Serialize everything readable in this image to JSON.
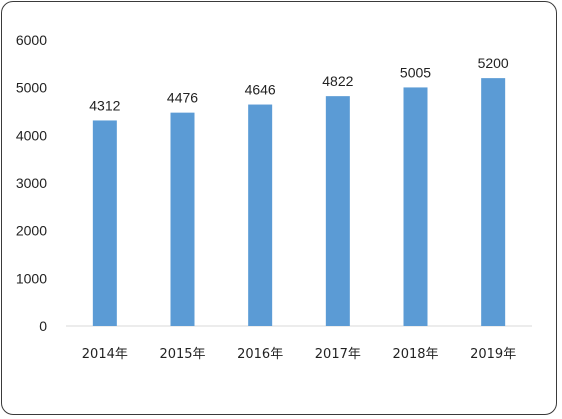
{
  "chart_data": {
    "type": "bar",
    "categories": [
      "2014年",
      "2015年",
      "2016年",
      "2017年",
      "2018年",
      "2019年"
    ],
    "values": [
      4312,
      4476,
      4646,
      4822,
      5005,
      5200
    ],
    "data_labels": [
      "4312",
      "4476",
      "4646",
      "4822",
      "5005",
      "5200"
    ],
    "y_ticks": [
      "0",
      "1000",
      "2000",
      "3000",
      "4000",
      "5000",
      "6000"
    ],
    "ylim": [
      0,
      6000
    ],
    "title": "",
    "xlabel": "",
    "ylabel": "",
    "grid": false,
    "legend": "none",
    "bar_color": "#5b9bd5",
    "axis_color": "#d9d9d9"
  }
}
